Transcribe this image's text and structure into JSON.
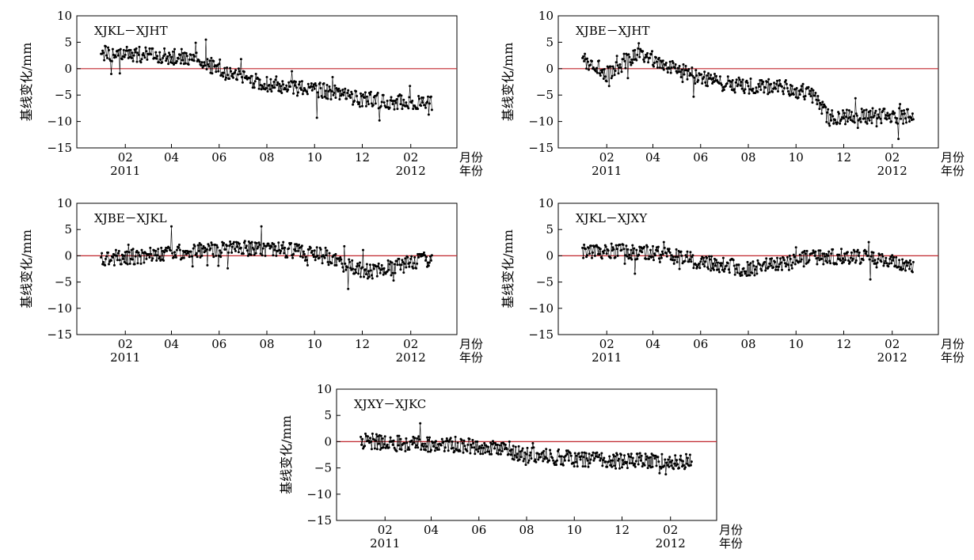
{
  "figure": {
    "ylabel": "基线变化/mm",
    "month_axis_label": "月份",
    "year_axis_label": "年份",
    "colors": {
      "zero_line": "#c0272d",
      "data": "#000000",
      "axes": "#000000"
    }
  },
  "chart_data": [
    {
      "type": "line",
      "title": "XJKL－XJHT",
      "ylabel": "基线变化/mm",
      "ylim": [
        -15,
        10
      ],
      "yticks": [
        10,
        5,
        0,
        -5,
        -10,
        -15
      ],
      "xlim": [
        "2010-12-01",
        "2012-03-31"
      ],
      "xticks": [
        {
          "date": "2011-02-01",
          "label": "02"
        },
        {
          "date": "2011-04-01",
          "label": "04"
        },
        {
          "date": "2011-06-01",
          "label": "06"
        },
        {
          "date": "2011-08-01",
          "label": "08"
        },
        {
          "date": "2011-10-01",
          "label": "10"
        },
        {
          "date": "2011-12-01",
          "label": "12"
        },
        {
          "date": "2012-02-01",
          "label": "02"
        }
      ],
      "year_labels": [
        {
          "date": "2011-02-01",
          "label": "2011"
        },
        {
          "date": "2012-02-01",
          "label": "2012"
        }
      ],
      "month_axis_label": "月份",
      "year_axis_label": "年份",
      "reference_line": 0,
      "grid": false,
      "series": [
        {
          "x": [],
          "y": [],
          "x_start": "2011-01-01",
          "x_end": "2012-02-28"
        }
      ],
      "trend_anchors": [
        [
          "2011-01-01",
          3
        ],
        [
          "2011-03-15",
          2.5
        ],
        [
          "2011-05-01",
          2
        ],
        [
          "2011-06-15",
          -1
        ],
        [
          "2011-08-01",
          -3
        ],
        [
          "2011-10-01",
          -4
        ],
        [
          "2011-11-01",
          -4.5
        ],
        [
          "2011-12-01",
          -6
        ],
        [
          "2012-02-28",
          -6.5
        ]
      ]
    },
    {
      "type": "line",
      "title": "XJBE－XJHT",
      "ylabel": "基线变化/mm",
      "ylim": [
        -15,
        10
      ],
      "yticks": [
        10,
        5,
        0,
        -5,
        -10,
        -15
      ],
      "xlim": [
        "2010-12-01",
        "2012-03-31"
      ],
      "xticks": [
        {
          "date": "2011-02-01",
          "label": "02"
        },
        {
          "date": "2011-04-01",
          "label": "04"
        },
        {
          "date": "2011-06-01",
          "label": "06"
        },
        {
          "date": "2011-08-01",
          "label": "08"
        },
        {
          "date": "2011-10-01",
          "label": "10"
        },
        {
          "date": "2011-12-01",
          "label": "12"
        },
        {
          "date": "2012-02-01",
          "label": "02"
        }
      ],
      "year_labels": [
        {
          "date": "2011-02-01",
          "label": "2011"
        },
        {
          "date": "2012-02-01",
          "label": "2012"
        }
      ],
      "month_axis_label": "月份",
      "year_axis_label": "年份",
      "reference_line": 0,
      "grid": false,
      "series": [
        {
          "x": [],
          "y": [],
          "x_start": "2011-01-01",
          "x_end": "2012-02-28"
        }
      ],
      "trend_anchors": [
        [
          "2011-01-01",
          2
        ],
        [
          "2011-02-01",
          -1
        ],
        [
          "2011-03-15",
          3
        ],
        [
          "2011-05-01",
          0
        ],
        [
          "2011-07-01",
          -3
        ],
        [
          "2011-09-01",
          -3.5
        ],
        [
          "2011-10-20",
          -4.5
        ],
        [
          "2011-11-10",
          -9
        ],
        [
          "2012-02-28",
          -9
        ]
      ]
    },
    {
      "type": "line",
      "title": "XJBE－XJKL",
      "ylabel": "基线变化/mm",
      "ylim": [
        -15,
        10
      ],
      "yticks": [
        10,
        5,
        0,
        -5,
        -10,
        -15
      ],
      "xlim": [
        "2010-12-01",
        "2012-03-31"
      ],
      "xticks": [
        {
          "date": "2011-02-01",
          "label": "02"
        },
        {
          "date": "2011-04-01",
          "label": "04"
        },
        {
          "date": "2011-06-01",
          "label": "06"
        },
        {
          "date": "2011-08-01",
          "label": "08"
        },
        {
          "date": "2011-10-01",
          "label": "10"
        },
        {
          "date": "2011-12-01",
          "label": "12"
        },
        {
          "date": "2012-02-01",
          "label": "02"
        }
      ],
      "year_labels": [
        {
          "date": "2011-02-01",
          "label": "2011"
        },
        {
          "date": "2012-02-01",
          "label": "2012"
        }
      ],
      "month_axis_label": "月份",
      "year_axis_label": "年份",
      "reference_line": 0,
      "grid": false,
      "series": [
        {
          "x": [],
          "y": [],
          "x_start": "2011-01-01",
          "x_end": "2012-02-28"
        }
      ],
      "trend_anchors": [
        [
          "2011-01-01",
          -0.5
        ],
        [
          "2011-03-01",
          0
        ],
        [
          "2011-05-01",
          1
        ],
        [
          "2011-07-01",
          1.5
        ],
        [
          "2011-09-01",
          1
        ],
        [
          "2011-10-15",
          0
        ],
        [
          "2011-11-10",
          -2
        ],
        [
          "2011-12-15",
          -3
        ],
        [
          "2012-02-28",
          -0.5
        ]
      ]
    },
    {
      "type": "line",
      "title": "XJKL－XJXY",
      "ylabel": "基线变化/mm",
      "ylim": [
        -15,
        10
      ],
      "yticks": [
        10,
        5,
        0,
        -5,
        -10,
        -15
      ],
      "xlim": [
        "2010-12-01",
        "2012-03-31"
      ],
      "xticks": [
        {
          "date": "2011-02-01",
          "label": "02"
        },
        {
          "date": "2011-04-01",
          "label": "04"
        },
        {
          "date": "2011-06-01",
          "label": "06"
        },
        {
          "date": "2011-08-01",
          "label": "08"
        },
        {
          "date": "2011-10-01",
          "label": "10"
        },
        {
          "date": "2011-12-01",
          "label": "12"
        },
        {
          "date": "2012-02-01",
          "label": "02"
        }
      ],
      "year_labels": [
        {
          "date": "2011-02-01",
          "label": "2011"
        },
        {
          "date": "2012-02-01",
          "label": "2012"
        }
      ],
      "month_axis_label": "月份",
      "year_axis_label": "年份",
      "reference_line": 0,
      "grid": false,
      "series": [
        {
          "x": [],
          "y": [],
          "x_start": "2011-01-01",
          "x_end": "2012-02-28"
        }
      ],
      "trend_anchors": [
        [
          "2011-01-01",
          1
        ],
        [
          "2011-04-01",
          0.5
        ],
        [
          "2011-06-15",
          -1.5
        ],
        [
          "2011-08-01",
          -2.5
        ],
        [
          "2011-09-15",
          -1.5
        ],
        [
          "2011-10-15",
          -0.5
        ],
        [
          "2011-12-15",
          0
        ],
        [
          "2012-02-28",
          -2
        ]
      ]
    },
    {
      "type": "line",
      "title": "XJXY－XJKC",
      "ylabel": "基线变化/mm",
      "ylim": [
        -15,
        10
      ],
      "yticks": [
        10,
        5,
        0,
        -5,
        -10,
        -15
      ],
      "xlim": [
        "2010-12-01",
        "2012-03-31"
      ],
      "xticks": [
        {
          "date": "2011-02-01",
          "label": "02"
        },
        {
          "date": "2011-04-01",
          "label": "04"
        },
        {
          "date": "2011-06-01",
          "label": "06"
        },
        {
          "date": "2011-08-01",
          "label": "08"
        },
        {
          "date": "2011-10-01",
          "label": "10"
        },
        {
          "date": "2011-12-01",
          "label": "12"
        },
        {
          "date": "2012-02-01",
          "label": "02"
        }
      ],
      "year_labels": [
        {
          "date": "2011-02-01",
          "label": "2011"
        },
        {
          "date": "2012-02-01",
          "label": "2012"
        }
      ],
      "month_axis_label": "月份",
      "year_axis_label": "年份",
      "reference_line": 0,
      "grid": false,
      "series": [
        {
          "x": [],
          "y": [],
          "x_start": "2011-01-01",
          "x_end": "2012-02-28"
        }
      ],
      "trend_anchors": [
        [
          "2011-01-01",
          0.2
        ],
        [
          "2011-03-01",
          -0.5
        ],
        [
          "2011-05-01",
          -0.5
        ],
        [
          "2011-06-15",
          -1
        ],
        [
          "2011-08-01",
          -2.5
        ],
        [
          "2011-09-15",
          -3
        ],
        [
          "2011-10-15",
          -3.5
        ],
        [
          "2012-02-28",
          -3.8
        ]
      ]
    }
  ]
}
